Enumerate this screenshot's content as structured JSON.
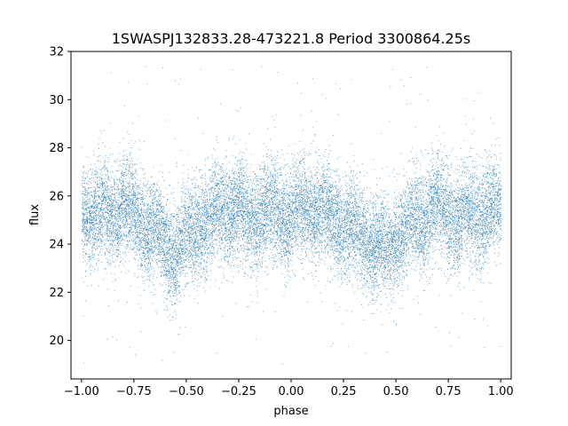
{
  "chart_data": {
    "type": "scatter",
    "title": "1SWASPJ132833.28-473221.8 Period 3300864.25s",
    "xlabel": "phase",
    "ylabel": "flux",
    "xlim": [
      -1.05,
      1.05
    ],
    "ylim": [
      18.4,
      32.0
    ],
    "xticks": [
      -1.0,
      -0.75,
      -0.5,
      -0.25,
      0.0,
      0.25,
      0.5,
      0.75,
      1.0
    ],
    "xtick_labels": [
      "−1.00",
      "−0.75",
      "−0.50",
      "−0.25",
      "0.00",
      "0.25",
      "0.50",
      "0.75",
      "1.00"
    ],
    "yticks": [
      20,
      22,
      24,
      26,
      28,
      30,
      32
    ],
    "ytick_labels": [
      "20",
      "22",
      "24",
      "26",
      "28",
      "30",
      "32"
    ],
    "grid": false,
    "legend": "none",
    "marker_color": "#1f77b4",
    "profile": {
      "phase": [
        -1.0,
        -0.9,
        -0.8,
        -0.7,
        -0.6,
        -0.55,
        -0.5,
        -0.4,
        -0.3,
        -0.2,
        -0.1,
        0.0,
        0.1,
        0.2,
        0.3,
        0.4,
        0.45,
        0.5,
        0.6,
        0.7,
        0.8,
        0.9,
        1.0
      ],
      "median_flux": [
        25.4,
        25.2,
        25.6,
        24.8,
        24.0,
        23.6,
        24.3,
        25.0,
        25.6,
        25.0,
        25.4,
        25.2,
        25.6,
        25.0,
        24.6,
        24.0,
        23.6,
        24.3,
        25.0,
        25.6,
        25.0,
        25.4,
        25.4
      ],
      "scatter_sigma": 1.05
    },
    "n_points": 18000
  }
}
